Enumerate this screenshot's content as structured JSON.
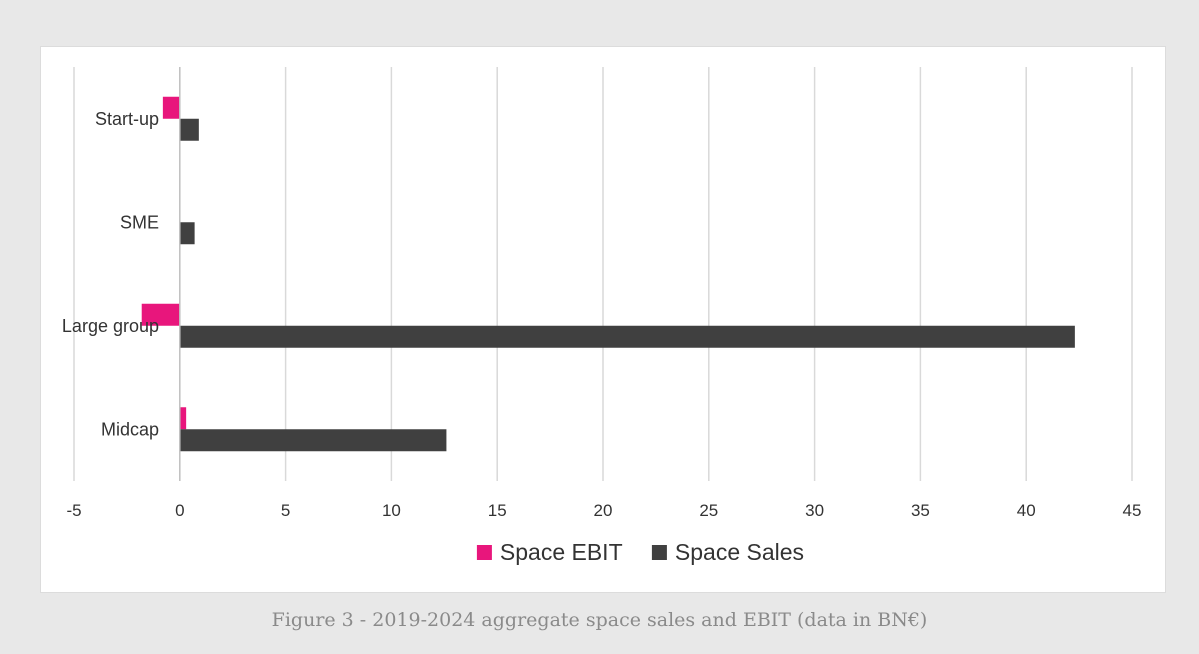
{
  "caption": "Figure 3 - 2019-2024 aggregate space sales and EBIT (data in BN€)",
  "chart_data": {
    "type": "bar",
    "orientation": "horizontal",
    "categories": [
      "Start-up",
      "SME",
      "Large group",
      "Midcap"
    ],
    "series": [
      {
        "name": "Space EBIT",
        "color": "#e8167c",
        "values": [
          -0.8,
          0,
          -1.8,
          0.3
        ]
      },
      {
        "name": "Space Sales",
        "color": "#404040",
        "values": [
          0.9,
          0.7,
          42.3,
          12.6
        ]
      }
    ],
    "xlim": [
      -5,
      45
    ],
    "xticks": [
      -5,
      0,
      5,
      10,
      15,
      20,
      25,
      30,
      35,
      40,
      45
    ],
    "xtick_labels": [
      "-5",
      "0",
      "5",
      "10",
      "15",
      "20",
      "25",
      "30",
      "35",
      "40",
      "45"
    ],
    "title": "",
    "xlabel": "",
    "ylabel": "",
    "grid": "vertical",
    "legend": "bottom"
  }
}
